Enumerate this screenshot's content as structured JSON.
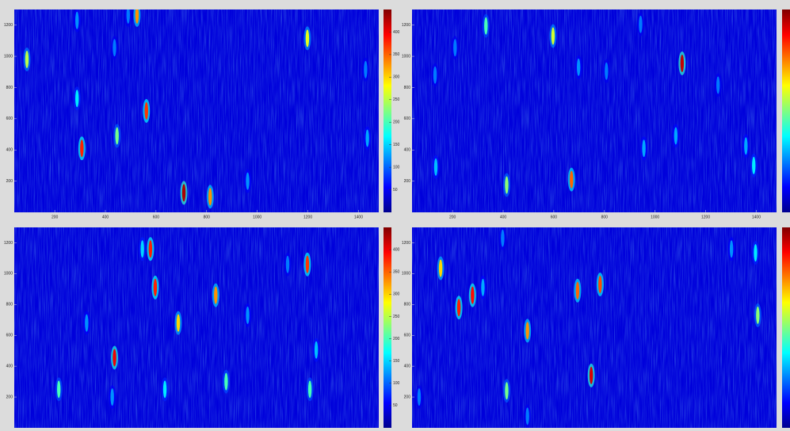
{
  "chart_data": [
    {
      "type": "heatmap",
      "colormap": "jet",
      "x": [
        90,
        288,
        490,
        525,
        436,
        288,
        307,
        446,
        562,
        710,
        814,
        962,
        1198,
        1428,
        1435
      ],
      "y": [
        980,
        1230,
        1265,
        1265,
        1055,
        730,
        410,
        490,
        650,
        125,
        100,
        200,
        1115,
        915,
        475
      ],
      "values": [
        250,
        120,
        110,
        330,
        110,
        160,
        380,
        220,
        370,
        430,
        330,
        120,
        270,
        110,
        130
      ],
      "xlim": [
        40,
        1480
      ],
      "ylim": [
        0,
        1300
      ],
      "xticks": [
        200,
        400,
        600,
        800,
        1000,
        1200,
        1400
      ],
      "yticks": [
        200,
        400,
        600,
        800,
        1000,
        1200
      ],
      "clim": [
        0,
        450
      ],
      "cticks": [
        50,
        100,
        150,
        200,
        250,
        300,
        350,
        400
      ]
    },
    {
      "type": "heatmap",
      "colormap": "jet",
      "x": [
        131,
        210,
        332,
        597,
        698,
        808,
        943,
        1107,
        1249,
        134,
        414,
        670,
        956,
        1082,
        1390,
        1359
      ],
      "y": [
        880,
        1055,
        1195,
        1130,
        930,
        905,
        1205,
        955,
        815,
        290,
        175,
        210,
        410,
        490,
        300,
        425
      ],
      "values": [
        110,
        110,
        200,
        260,
        120,
        110,
        110,
        420,
        110,
        140,
        230,
        350,
        130,
        130,
        160,
        130
      ],
      "xlim": [
        40,
        1480
      ],
      "ylim": [
        0,
        1300
      ],
      "xticks": [
        200,
        400,
        600,
        800,
        1000,
        1200,
        1400
      ],
      "yticks": [
        200,
        400,
        600,
        800,
        1000,
        1200
      ],
      "clim": [
        0,
        450
      ]
    },
    {
      "type": "heatmap",
      "colormap": "jet",
      "x": [
        546,
        578,
        597,
        688,
        836,
        326,
        436,
        216,
        427,
        635,
        877,
        962,
        1120,
        1198,
        1233,
        1208
      ],
      "y": [
        1160,
        1160,
        910,
        680,
        860,
        680,
        455,
        250,
        200,
        250,
        300,
        730,
        1060,
        1060,
        505,
        250
      ],
      "values": [
        150,
        380,
        380,
        300,
        330,
        120,
        400,
        200,
        120,
        160,
        200,
        120,
        110,
        370,
        140,
        200
      ],
      "xlim": [
        40,
        1480
      ],
      "ylim": [
        0,
        1300
      ],
      "yticks": [
        200,
        400,
        600,
        800,
        1000,
        1200
      ],
      "clim": [
        0,
        450
      ],
      "cticks": [
        50,
        100,
        150,
        200,
        250,
        300,
        350,
        400
      ]
    },
    {
      "type": "heatmap",
      "colormap": "jet",
      "x": [
        153,
        225,
        279,
        320,
        398,
        496,
        414,
        496,
        694,
        783,
        748,
        1302,
        1397,
        1406,
        68
      ],
      "y": [
        1035,
        780,
        860,
        910,
        1230,
        630,
        240,
        75,
        890,
        930,
        340,
        1160,
        1135,
        730,
        200
      ],
      "values": [
        300,
        380,
        390,
        130,
        110,
        330,
        220,
        110,
        350,
        360,
        410,
        120,
        160,
        230,
        110
      ],
      "xlim": [
        40,
        1480
      ],
      "ylim": [
        0,
        1300
      ],
      "yticks": [
        200,
        400,
        600,
        800,
        1000,
        1200
      ],
      "clim": [
        0,
        450
      ]
    }
  ]
}
